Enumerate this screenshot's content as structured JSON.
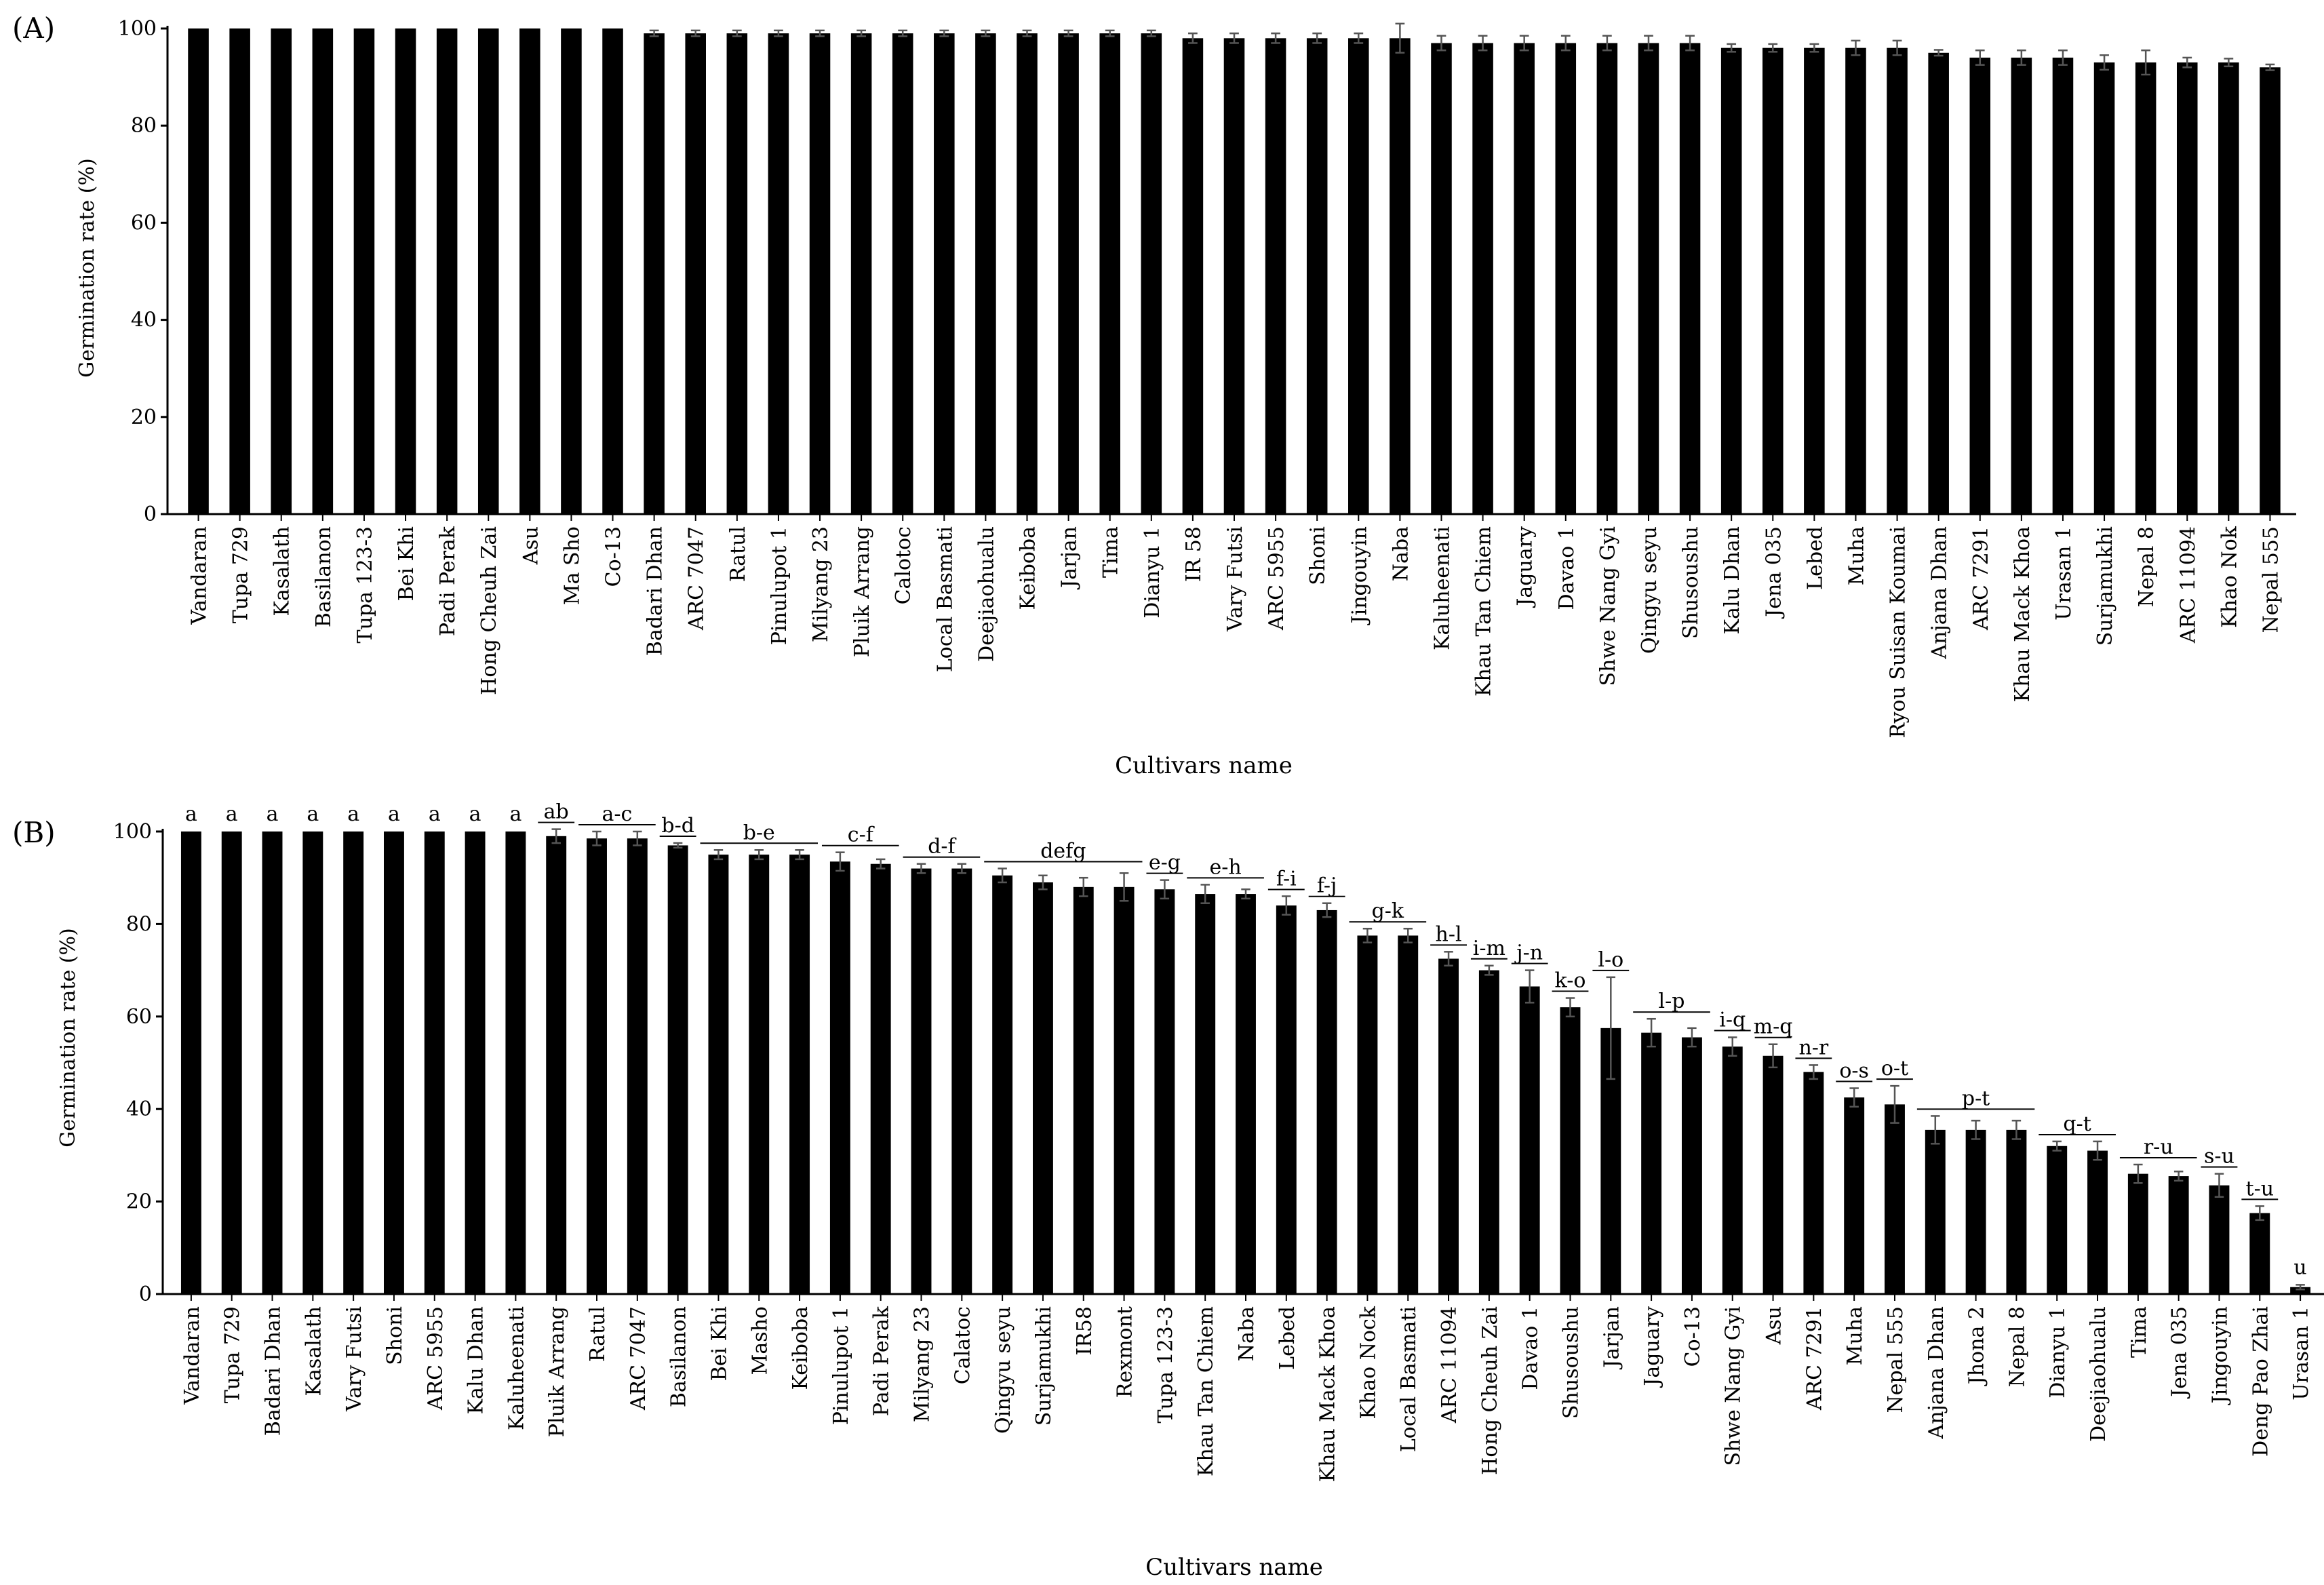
{
  "chart_data": [
    {
      "type": "bar",
      "panel_label": "(A)",
      "xlabel": "Cultivars name",
      "ylabel": "Germination rate (%)",
      "ylim": [
        0,
        100
      ],
      "yticks": [
        0,
        20,
        40,
        60,
        80,
        100
      ],
      "grid": false,
      "bar_color": "#000000",
      "categories": [
        "Vandaran",
        "Tupa 729",
        "Kasalath",
        "Basilanon",
        "Tupa 123-3",
        "Bei Khi",
        "Padi Perak",
        "Hong Cheuh Zai",
        "Asu",
        "Ma Sho",
        "Co-13",
        "Badari Dhan",
        "ARC 7047",
        "Ratul",
        "Pinulupot 1",
        "Milyang 23",
        "Pluik Arrang",
        "Calotoc",
        "Local Basmati",
        "Deejiaohualu",
        "Keiboba",
        "Jarjan",
        "Tima",
        "Dianyu 1",
        "IR 58",
        "Vary Futsi",
        "ARC 5955",
        "Shoni",
        "Jingouyin",
        "Naba",
        "Kaluheenati",
        "Khau Tan Chiem",
        "Jaguary",
        "Davao 1",
        "Shwe Nang Gyi",
        "Qingyu seyu",
        "Shusoushu",
        "Kalu Dhan",
        "Jena 035",
        "Lebed",
        "Muha",
        "Ryou Suisan Koumai",
        "Anjana Dhan",
        "ARC 7291",
        "Khau Mack Khoa",
        "Urasan 1",
        "Surjamukhi",
        "Nepal 8",
        "ARC 11094",
        "Khao Nok",
        "Nepal 555"
      ],
      "values": [
        100,
        100,
        100,
        100,
        100,
        100,
        100,
        100,
        100,
        100,
        100,
        99,
        99,
        99,
        99,
        99,
        99,
        99,
        99,
        99,
        99,
        99,
        99,
        99,
        98,
        98,
        98,
        98,
        98,
        98,
        97,
        97,
        97,
        97,
        97,
        97,
        97,
        96,
        96,
        96,
        96,
        96,
        95,
        94,
        94,
        94,
        93,
        93,
        93,
        93,
        92
      ],
      "errors": [
        0,
        0,
        0,
        0,
        0,
        0,
        0,
        0,
        0,
        0,
        0,
        0.6,
        0.6,
        0.6,
        0.6,
        0.6,
        0.6,
        0.6,
        0.6,
        0.6,
        0.6,
        0.6,
        0.6,
        0.6,
        1,
        1,
        1,
        1,
        1,
        3,
        1.5,
        1.5,
        1.5,
        1.5,
        1.5,
        1.5,
        1.5,
        0.8,
        0.8,
        0.8,
        1.5,
        1.5,
        0.6,
        1.5,
        1.5,
        1.5,
        1.5,
        2.5,
        1,
        0.8,
        0.6
      ]
    },
    {
      "type": "bar",
      "panel_label": "(B)",
      "xlabel": "Cultivars name",
      "ylabel": "Germination rate (%)",
      "ylim": [
        0,
        100
      ],
      "yticks": [
        0,
        20,
        40,
        60,
        80,
        100
      ],
      "grid": false,
      "bar_color": "#000000",
      "categories": [
        "Vandaran",
        "Tupa 729",
        "Badari Dhan",
        "Kasalath",
        "Vary Futsi",
        "Shoni",
        "ARC 5955",
        "Kalu Dhan",
        "Kaluheenati",
        "Pluik Arrang",
        "Ratul",
        "ARC 7047",
        "Basilanon",
        "Bei Khi",
        "Masho",
        "Keiboba",
        "Pinulupot 1",
        "Padi Perak",
        "Milyang 23",
        "Calatoc",
        "Qingyu seyu",
        "Surjamukhi",
        "IR58",
        "Rexmont",
        "Tupa 123-3",
        "Khau Tan Chiem",
        "Naba",
        "Lebed",
        "Khau Mack Khoa",
        "Khao Nock",
        "Local Basmati",
        "ARC 11094",
        "Hong Cheuh Zai",
        "Davao 1",
        "Shusoushu",
        "Jarjan",
        "Jaguary",
        "Co-13",
        "Shwe Nang Gyi",
        "Asu",
        "ARC 7291",
        "Muha",
        "Nepal 555",
        "Anjana Dhan",
        "Jhona 2",
        "Nepal 8",
        "Dianyu 1",
        "Deejiaohualu",
        "Tima",
        "Jena 035",
        "Jingouyin",
        "Deng Pao Zhai",
        "Urasan 1"
      ],
      "values": [
        100,
        100,
        100,
        100,
        100,
        100,
        100,
        100,
        100,
        99,
        98.5,
        98.5,
        97,
        95,
        95,
        95,
        93.5,
        93,
        92,
        92,
        90.5,
        89,
        88,
        88,
        87.5,
        86.5,
        86.5,
        84,
        83,
        77.5,
        77.5,
        72.5,
        70,
        66.5,
        62,
        57.5,
        56.5,
        55.5,
        53.5,
        51.5,
        48,
        42.5,
        41,
        35.5,
        35.5,
        35.5,
        32,
        31,
        26,
        25.5,
        23.5,
        17.5,
        1.5
      ],
      "errors": [
        0,
        0,
        0,
        0,
        0,
        0,
        0,
        0,
        0,
        1.5,
        1.5,
        1.5,
        0.5,
        1,
        1,
        1,
        2,
        1,
        1,
        1,
        1.5,
        1.5,
        2,
        3,
        2,
        2,
        1,
        2,
        1.5,
        1.5,
        1.5,
        1.5,
        1,
        3.5,
        2,
        11,
        3,
        2,
        2,
        2.5,
        1.5,
        2,
        4,
        3,
        2,
        2,
        1,
        2,
        2,
        1,
        2.5,
        1.5,
        0.5
      ],
      "significance_groups": [
        {
          "label": "a",
          "from": 0,
          "to": 0
        },
        {
          "label": "a",
          "from": 1,
          "to": 1
        },
        {
          "label": "a",
          "from": 2,
          "to": 2
        },
        {
          "label": "a",
          "from": 3,
          "to": 3
        },
        {
          "label": "a",
          "from": 4,
          "to": 4
        },
        {
          "label": "a",
          "from": 5,
          "to": 5
        },
        {
          "label": "a",
          "from": 6,
          "to": 6
        },
        {
          "label": "a",
          "from": 7,
          "to": 7
        },
        {
          "label": "a",
          "from": 8,
          "to": 8
        },
        {
          "label": "ab",
          "from": 9,
          "to": 9
        },
        {
          "label": "a-c",
          "from": 10,
          "to": 11
        },
        {
          "label": "b-d",
          "from": 12,
          "to": 12
        },
        {
          "label": "b-e",
          "from": 13,
          "to": 15
        },
        {
          "label": "c-f",
          "from": 16,
          "to": 17
        },
        {
          "label": "d-f",
          "from": 18,
          "to": 19
        },
        {
          "label": "defg",
          "from": 20,
          "to": 23
        },
        {
          "label": "e-g",
          "from": 24,
          "to": 24
        },
        {
          "label": "e-h",
          "from": 25,
          "to": 26
        },
        {
          "label": "f-i",
          "from": 27,
          "to": 27
        },
        {
          "label": "f-j",
          "from": 28,
          "to": 28
        },
        {
          "label": "g-k",
          "from": 29,
          "to": 30
        },
        {
          "label": "h-l",
          "from": 31,
          "to": 31
        },
        {
          "label": "i-m",
          "from": 32,
          "to": 32
        },
        {
          "label": "j-n",
          "from": 33,
          "to": 33
        },
        {
          "label": "k-o",
          "from": 34,
          "to": 34
        },
        {
          "label": "l-o",
          "from": 35,
          "to": 35
        },
        {
          "label": "l-p",
          "from": 36,
          "to": 37
        },
        {
          "label": "i-q",
          "from": 38,
          "to": 38
        },
        {
          "label": "m-q",
          "from": 39,
          "to": 39
        },
        {
          "label": "n-r",
          "from": 40,
          "to": 40
        },
        {
          "label": "o-s",
          "from": 41,
          "to": 41
        },
        {
          "label": "o-t",
          "from": 42,
          "to": 42
        },
        {
          "label": "p-t",
          "from": 43,
          "to": 45
        },
        {
          "label": "q-t",
          "from": 46,
          "to": 47
        },
        {
          "label": "r-u",
          "from": 48,
          "to": 49
        },
        {
          "label": "s-u",
          "from": 50,
          "to": 50
        },
        {
          "label": "t-u",
          "from": 51,
          "to": 51
        },
        {
          "label": "u",
          "from": 52,
          "to": 52
        }
      ]
    }
  ]
}
